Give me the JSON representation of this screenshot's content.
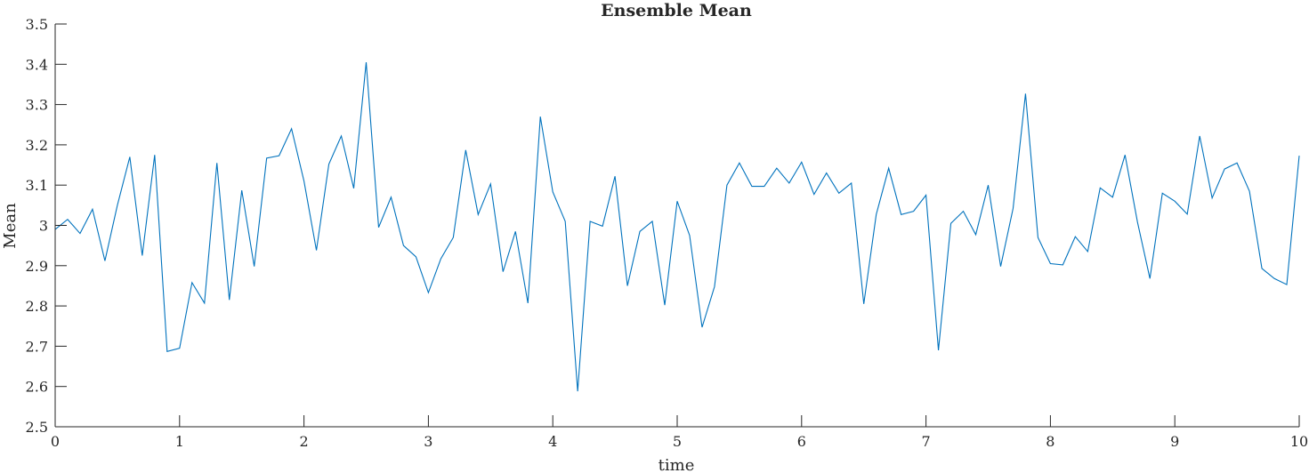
{
  "chart_data": {
    "type": "line",
    "title": "Ensemble Mean",
    "xlabel": "time",
    "ylabel": "Mean",
    "xlim": [
      0,
      10
    ],
    "ylim": [
      2.5,
      3.5
    ],
    "xticks": [
      0,
      1,
      2,
      3,
      4,
      5,
      6,
      7,
      8,
      9,
      10
    ],
    "xtick_labels": [
      "0",
      "1",
      "2",
      "3",
      "4",
      "5",
      "6",
      "7",
      "8",
      "9",
      "10"
    ],
    "yticks": [
      2.5,
      2.6,
      2.7,
      2.8,
      2.9,
      3.0,
      3.1,
      3.2,
      3.3,
      3.4,
      3.5
    ],
    "ytick_labels": [
      "2.5",
      "2.6",
      "2.7",
      "2.8",
      "2.9",
      "3",
      "3.1",
      "3.2",
      "3.3",
      "3.4",
      "3.5"
    ],
    "grid": false,
    "line_color": "#0072BD",
    "axis_color": "#262626",
    "series": [
      {
        "x": [
          0,
          0.1,
          0.2,
          0.3,
          0.4,
          0.5,
          0.6,
          0.7,
          0.8,
          0.9,
          1.0,
          1.1,
          1.2,
          1.3,
          1.4,
          1.5,
          1.6,
          1.7,
          1.8,
          1.9,
          2.0,
          2.1,
          2.2,
          2.3,
          2.4,
          2.5,
          2.6,
          2.7,
          2.8,
          2.9,
          3.0,
          3.1,
          3.2,
          3.3,
          3.4,
          3.5,
          3.6,
          3.7,
          3.8,
          3.9,
          4.0,
          4.1,
          4.2,
          4.3,
          4.4,
          4.5,
          4.6,
          4.7,
          4.8,
          4.9,
          5.0,
          5.1,
          5.2,
          5.3,
          5.4,
          5.5,
          5.6,
          5.7,
          5.8,
          5.9,
          6.0,
          6.1,
          6.2,
          6.3,
          6.4,
          6.5,
          6.6,
          6.7,
          6.8,
          6.9,
          7.0,
          7.1,
          7.2,
          7.3,
          7.4,
          7.5,
          7.6,
          7.7,
          7.8,
          7.9,
          8.0,
          8.1,
          8.2,
          8.3,
          8.4,
          8.5,
          8.6,
          8.7,
          8.8,
          8.9,
          9.0,
          9.1,
          9.2,
          9.3,
          9.4,
          9.5,
          9.6,
          9.7,
          9.8,
          9.9,
          10.0
        ],
        "y": [
          2.99,
          3.015,
          2.98,
          3.04,
          2.912,
          3.05,
          3.17,
          2.925,
          3.175,
          2.687,
          2.695,
          2.858,
          2.807,
          3.155,
          2.815,
          3.087,
          2.898,
          3.167,
          3.173,
          3.24,
          3.11,
          2.938,
          3.152,
          3.222,
          3.092,
          3.405,
          2.995,
          3.07,
          2.95,
          2.922,
          2.833,
          2.917,
          2.97,
          3.187,
          3.027,
          3.103,
          2.885,
          2.985,
          2.807,
          3.27,
          3.083,
          3.01,
          2.588,
          3.01,
          2.998,
          3.122,
          2.85,
          2.985,
          3.01,
          2.802,
          3.06,
          2.975,
          2.747,
          2.848,
          3.1,
          3.155,
          3.097,
          3.097,
          3.142,
          3.105,
          3.157,
          3.077,
          3.13,
          3.08,
          3.105,
          2.805,
          3.027,
          3.142,
          3.027,
          3.035,
          3.075,
          2.69,
          3.005,
          3.035,
          2.977,
          3.1,
          2.898,
          3.042,
          3.327,
          2.97,
          2.905,
          2.902,
          2.972,
          2.935,
          3.093,
          3.07,
          3.175,
          3.008,
          2.868,
          3.08,
          3.06,
          3.028,
          3.222,
          3.068,
          3.14,
          3.155,
          3.085,
          2.893,
          2.868,
          2.853,
          3.173
        ]
      }
    ]
  }
}
